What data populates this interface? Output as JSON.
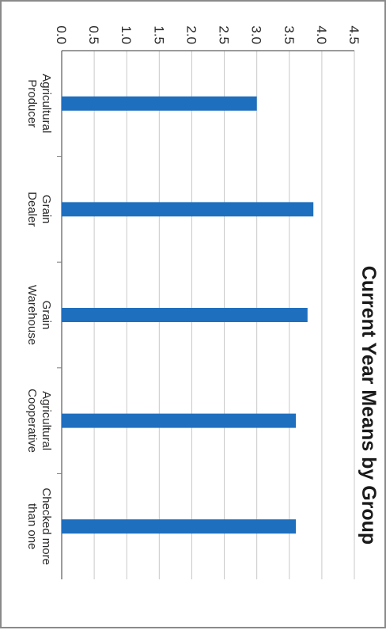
{
  "chart_data": {
    "type": "bar",
    "title": "Current Year Means by Group",
    "categories": [
      "Agricultural Producer",
      "Grain Dealer",
      "Grain Warehouse",
      "Agricultural Cooperative",
      "Checked more than one"
    ],
    "category_lines": [
      [
        "Agricultural",
        "Producer"
      ],
      [
        "Grain",
        "Dealer"
      ],
      [
        "Grain",
        "Warehouse"
      ],
      [
        "Agricultural",
        "Cooperative"
      ],
      [
        "Checked more",
        "than one"
      ]
    ],
    "values": [
      3.0,
      3.87,
      3.78,
      3.6,
      3.6
    ],
    "ylim": [
      0,
      4.5
    ],
    "yticks": [
      "0.0",
      "0.5",
      "1.0",
      "1.5",
      "2.0",
      "2.5",
      "3.0",
      "3.5",
      "4.0",
      "4.5"
    ],
    "xlabel": "",
    "ylabel": "",
    "grid": true,
    "orientation": "rotated 90 degrees clockwise",
    "bar_color": "#1f6fbf"
  }
}
